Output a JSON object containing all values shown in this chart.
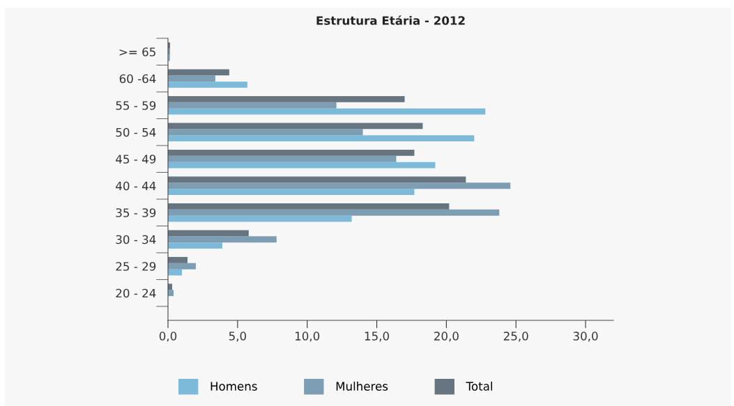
{
  "chart_data": {
    "type": "bar",
    "orientation": "horizontal",
    "title": "Estrutura Etária - 2012",
    "categories": [
      ">= 65",
      "60 -64",
      "55 - 59",
      "50 - 54",
      "45 - 49",
      "40 - 44",
      "35 - 39",
      "30 - 34",
      "25 - 29",
      "20 - 24"
    ],
    "series": [
      {
        "name": "Homens",
        "color": "#7dbad9",
        "values": [
          0.15,
          5.7,
          22.8,
          22.0,
          19.2,
          17.7,
          13.2,
          3.9,
          1.0,
          0
        ]
      },
      {
        "name": "Mulheres",
        "color": "#7d9db3",
        "values": [
          0.15,
          3.4,
          12.1,
          14.0,
          16.4,
          24.6,
          23.8,
          7.8,
          2.0,
          0.4
        ]
      },
      {
        "name": "Total",
        "color": "#66757f",
        "values": [
          0.15,
          4.4,
          17.0,
          18.3,
          17.7,
          21.4,
          20.2,
          5.8,
          1.4,
          0.3
        ]
      }
    ],
    "xlim": [
      0,
      32
    ],
    "xticks": [
      {
        "value": 0,
        "label": "0,0"
      },
      {
        "value": 5,
        "label": "5,0"
      },
      {
        "value": 10,
        "label": "10,0"
      },
      {
        "value": 15,
        "label": "15,0"
      },
      {
        "value": 20,
        "label": "20,0"
      },
      {
        "value": 25,
        "label": "25,0"
      },
      {
        "value": 30,
        "label": "30,0"
      }
    ],
    "grid": false,
    "legend": "bottom"
  }
}
